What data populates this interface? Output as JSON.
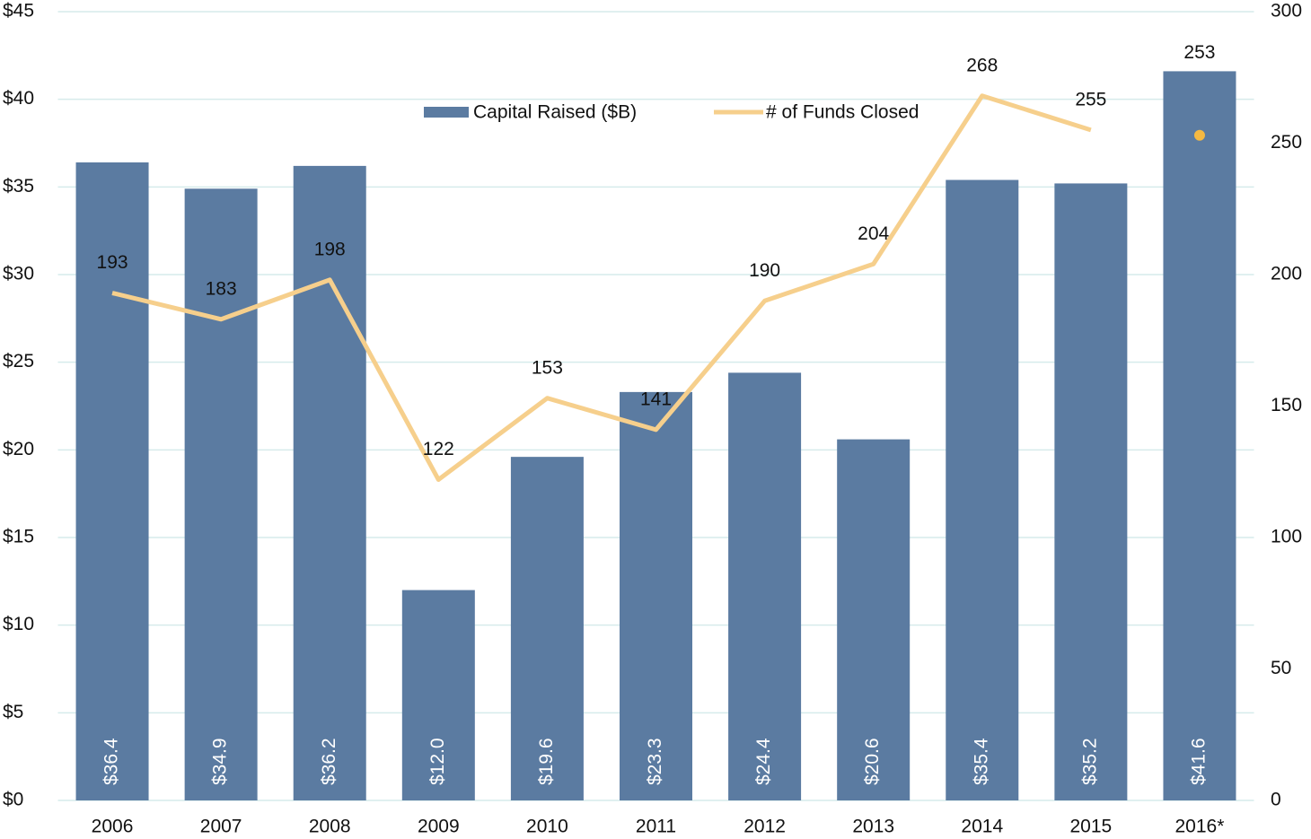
{
  "chart_data": {
    "type": "bar_line",
    "categories": [
      "2006",
      "2007",
      "2008",
      "2009",
      "2010",
      "2011",
      "2012",
      "2013",
      "2014",
      "2015",
      "2016*"
    ],
    "series": [
      {
        "name": "Capital Raised ($B)",
        "type": "bar",
        "color": "#5b7ba1",
        "values": [
          36.4,
          34.9,
          36.2,
          12.0,
          19.6,
          23.3,
          24.4,
          20.6,
          35.4,
          35.2,
          41.6
        ],
        "value_labels": [
          "$36.4",
          "$34.9",
          "$36.2",
          "$12.0",
          "$19.6",
          "$23.3",
          "$24.4",
          "$20.6",
          "$35.4",
          "$35.2",
          "$41.6"
        ]
      },
      {
        "name": "# of Funds Closed",
        "type": "line",
        "axis": "y2",
        "color": "#f6cf8c",
        "marker_color": "#f5b942",
        "marker_only_indices": [
          10
        ],
        "values": [
          193,
          183,
          198,
          122,
          153,
          141,
          190,
          204,
          268,
          255,
          253
        ]
      }
    ],
    "ylim": [
      0,
      45
    ],
    "yticks": [
      {
        "value": 0,
        "label": "$0"
      },
      {
        "value": 5,
        "label": "$5"
      },
      {
        "value": 10,
        "label": "$10"
      },
      {
        "value": 15,
        "label": "$15"
      },
      {
        "value": 20,
        "label": "$20"
      },
      {
        "value": 25,
        "label": "$25"
      },
      {
        "value": 30,
        "label": "$30"
      },
      {
        "value": 35,
        "label": "$35"
      },
      {
        "value": 40,
        "label": "$40"
      },
      {
        "value": 45,
        "label": "$45"
      }
    ],
    "y2lim": [
      0,
      300
    ],
    "y2ticks": [
      0,
      50,
      100,
      150,
      200,
      250,
      300
    ],
    "grid": true,
    "legend": "top"
  }
}
